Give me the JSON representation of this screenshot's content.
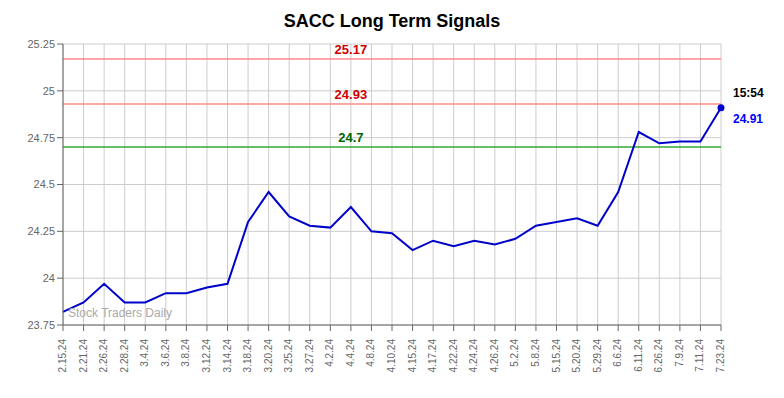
{
  "chart_data": {
    "type": "line",
    "title": "SACC Long Term Signals",
    "categories": [
      "2.15.24",
      "2.21.24",
      "2.26.24",
      "2.28.24",
      "3.4.24",
      "3.6.24",
      "3.8.24",
      "3.12.24",
      "3.14.24",
      "3.18.24",
      "3.20.24",
      "3.25.24",
      "3.27.24",
      "4.2.24",
      "4.4.24",
      "4.8.24",
      "4.10.24",
      "4.15.24",
      "4.17.24",
      "4.22.24",
      "4.24.24",
      "4.26.24",
      "5.2.24",
      "5.8.24",
      "5.15.24",
      "5.20.24",
      "5.29.24",
      "6.6.24",
      "6.11.24",
      "6.26.24",
      "7.9.24",
      "7.11.24",
      "7.23.24"
    ],
    "values": [
      23.82,
      23.87,
      23.97,
      23.87,
      23.87,
      23.92,
      23.92,
      23.95,
      23.97,
      24.3,
      24.46,
      24.33,
      24.28,
      24.27,
      24.38,
      24.25,
      24.24,
      24.15,
      24.2,
      24.17,
      24.2,
      24.18,
      24.21,
      24.28,
      24.3,
      24.32,
      24.28,
      24.46,
      24.78,
      24.72,
      24.73,
      24.73,
      24.91
    ],
    "color": "#0000cc",
    "ylim": [
      23.75,
      25.25
    ],
    "yticks": [
      23.75,
      24,
      24.25,
      24.5,
      24.75,
      25,
      25.25
    ],
    "grid": true,
    "hlines": [
      {
        "value": 25.17,
        "label": "25.17",
        "color": "#ff8888",
        "label_color": "#cc0000"
      },
      {
        "value": 24.93,
        "label": "24.93",
        "color": "#ff8888",
        "label_color": "#cc0000"
      },
      {
        "value": 24.7,
        "label": "24.7",
        "color": "#33aa33",
        "label_color": "#006600"
      }
    ],
    "last_point_labels": [
      {
        "text": "15:54",
        "color": "#000000"
      },
      {
        "text": "24.91",
        "color": "#0000ff"
      }
    ],
    "watermark": {
      "text": "Stock Traders Daily",
      "color": "#aaaaaa"
    }
  }
}
